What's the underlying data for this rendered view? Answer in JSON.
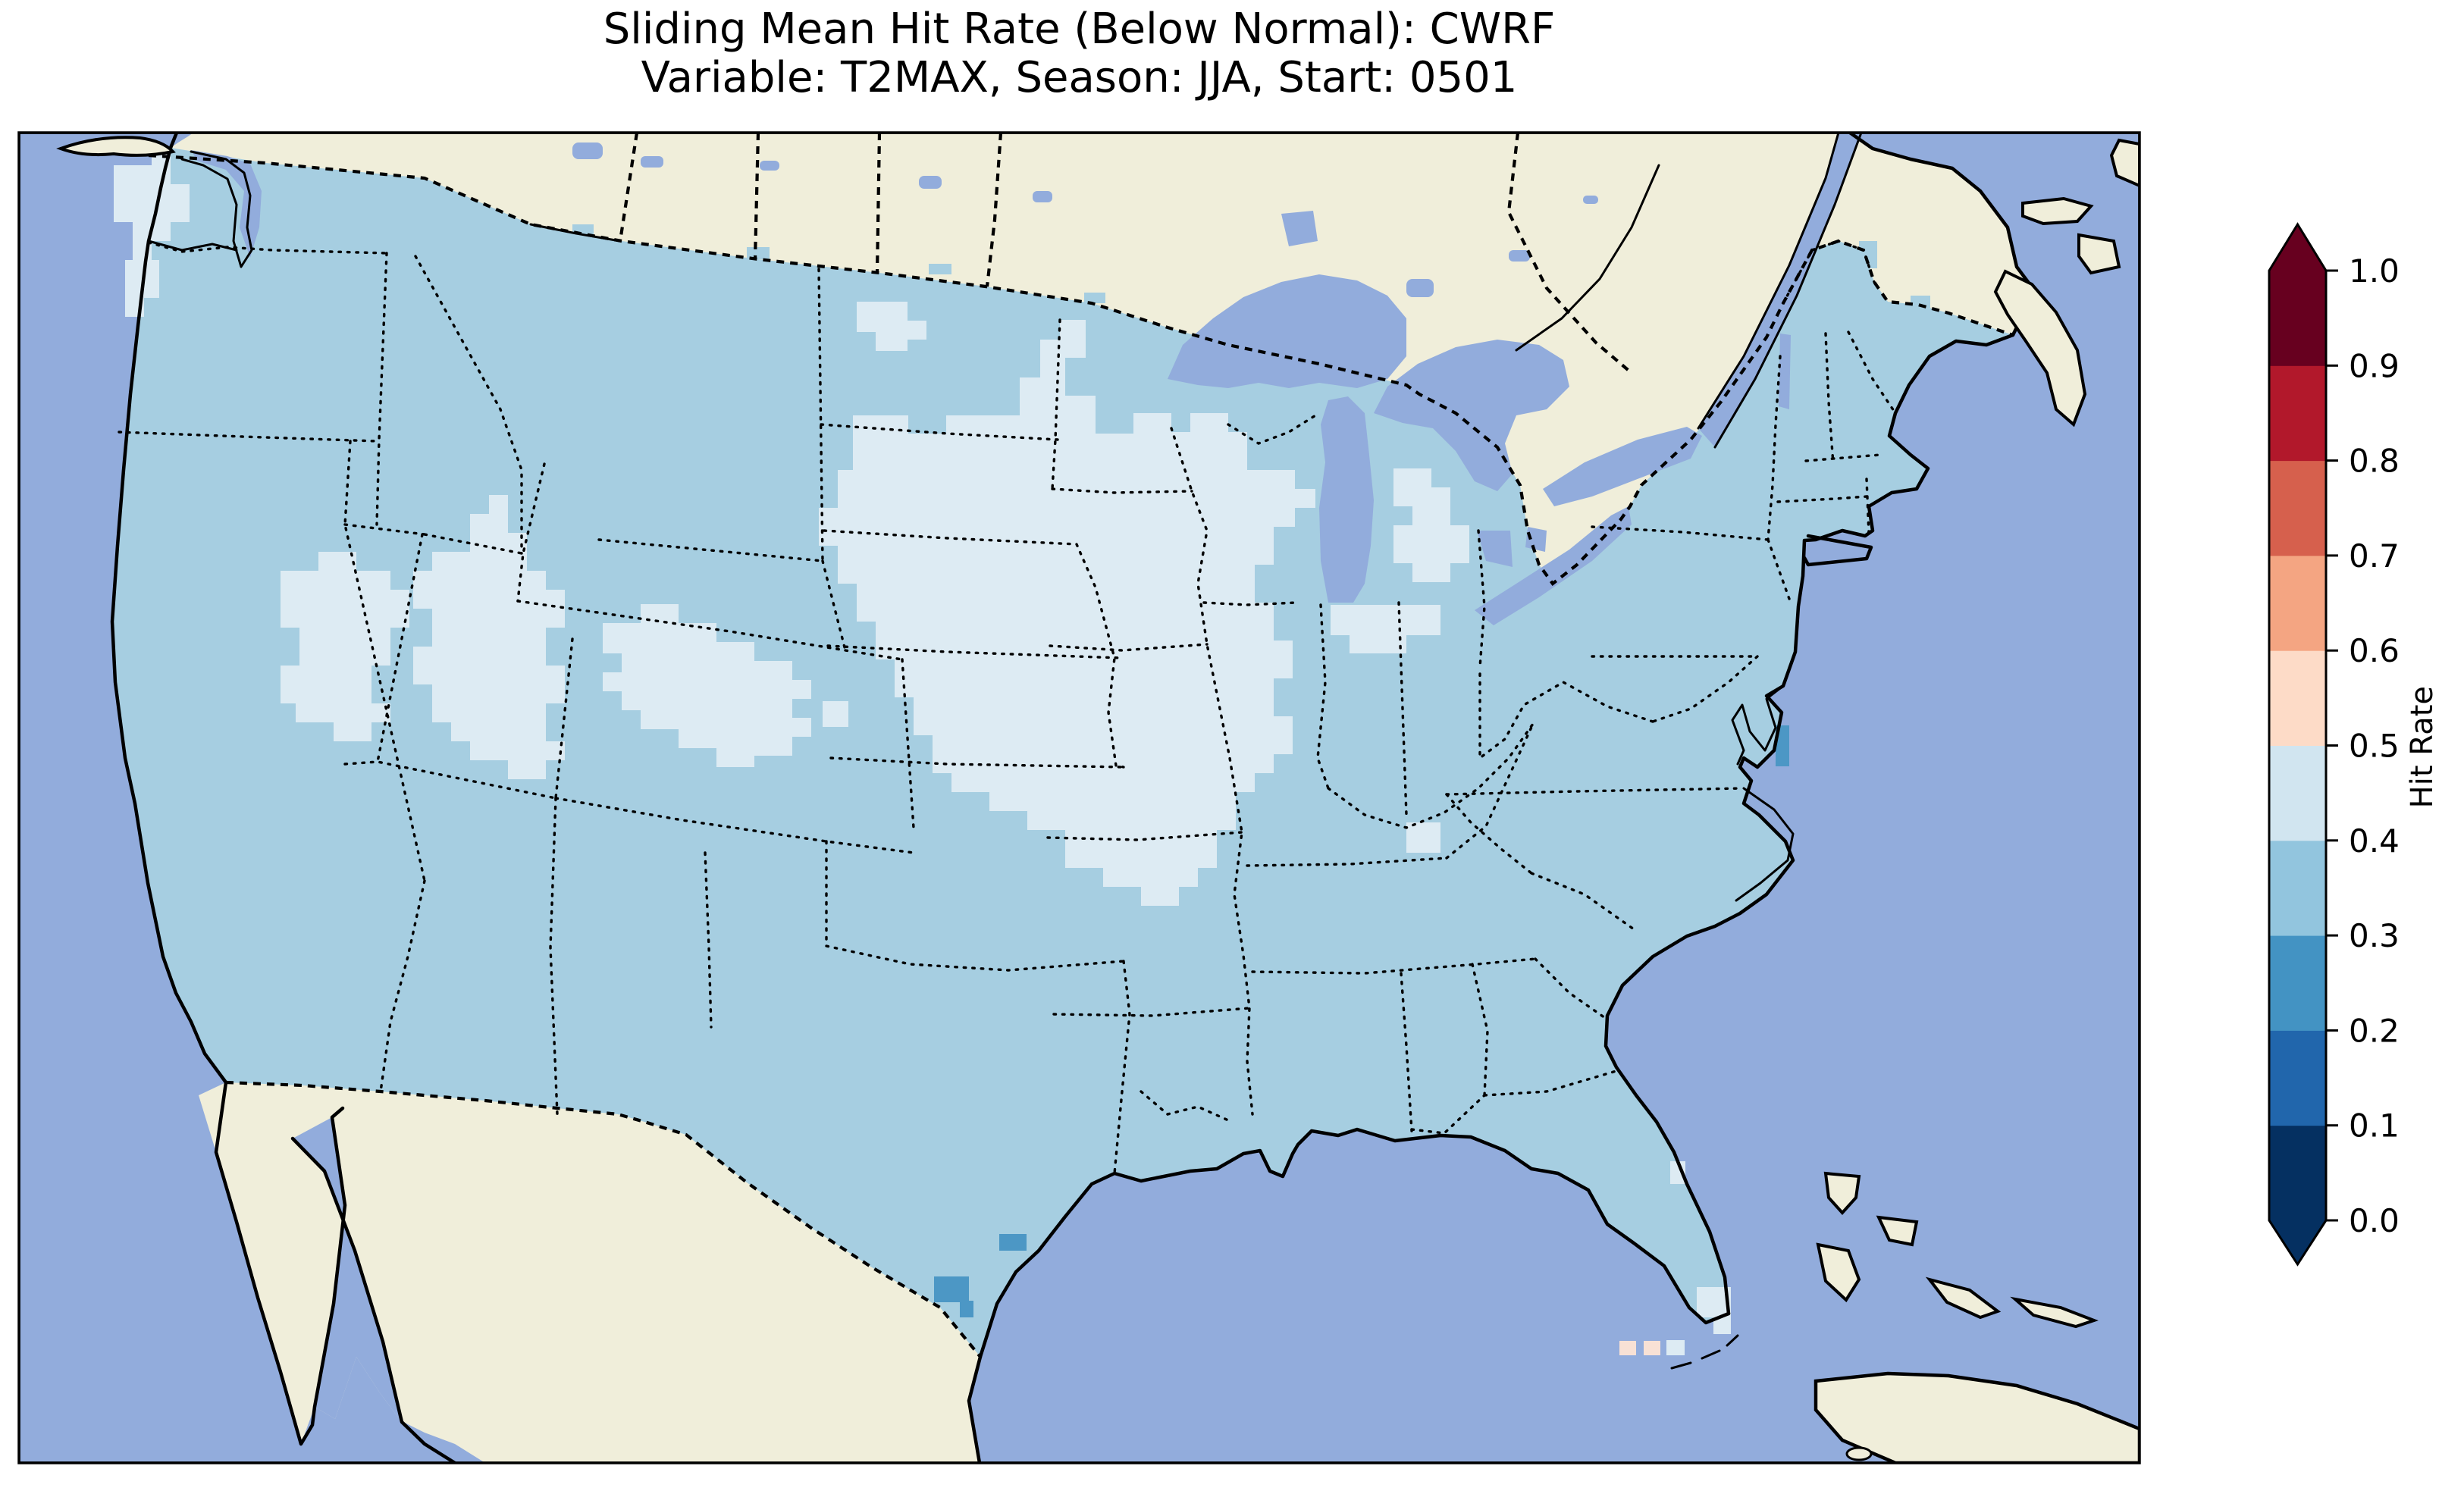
{
  "figure": {
    "title_line1": "Sliding Mean Hit Rate (Below Normal): CWRF",
    "title_line2": "Variable: T2MAX, Season: JJA, Start: 0501"
  },
  "colorbar": {
    "label": "Hit Rate",
    "tick_labels": [
      "0.0",
      "0.1",
      "0.2",
      "0.3",
      "0.4",
      "0.5",
      "0.6",
      "0.7",
      "0.8",
      "0.9",
      "1.0"
    ],
    "bin_colors_bottom_to_top": [
      "#053061",
      "#2166ac",
      "#4393c3",
      "#92c5de",
      "#d1e5f0",
      "#fddbc7",
      "#f4a582",
      "#d6604d",
      "#b2182b",
      "#67001f"
    ],
    "extend": "both"
  },
  "map": {
    "colors": {
      "ocean": "#92ACDC",
      "land": "#F0EEDA",
      "hit_0_3_to_0_4": "#A6CEE1",
      "hit_0_4_to_0_5": "#DDEBF3",
      "hit_0_2_to_0_3": "#4C97C5",
      "hit_0_5_to_0_6": "#F8E1D5",
      "coastline": "#000000"
    }
  },
  "chart_data": {
    "type": "heatmap",
    "title": "Sliding Mean Hit Rate (Below Normal): CWRF",
    "subtitle": "Variable: T2MAX, Season: JJA, Start: 0501",
    "metric": "Sliding Mean Hit Rate",
    "category": "Below Normal",
    "model": "CWRF",
    "variable": "T2MAX",
    "season": "JJA",
    "start": "0501",
    "colorbar_label": "Hit Rate",
    "colorbar_ticks": [
      0.0,
      0.1,
      0.2,
      0.3,
      0.4,
      0.5,
      0.6,
      0.7,
      0.8,
      0.9,
      1.0
    ],
    "colorbar_range": [
      0.0,
      1.0
    ],
    "colormap": {
      "name": "RdBu reversed, 10 discrete bins, extended arrows both ends",
      "bins": [
        {
          "range": [
            0.0,
            0.1
          ],
          "color": "#053061"
        },
        {
          "range": [
            0.1,
            0.2
          ],
          "color": "#2166ac"
        },
        {
          "range": [
            0.2,
            0.3
          ],
          "color": "#4393c3"
        },
        {
          "range": [
            0.3,
            0.4
          ],
          "color": "#92c5de"
        },
        {
          "range": [
            0.4,
            0.5
          ],
          "color": "#d1e5f0"
        },
        {
          "range": [
            0.5,
            0.6
          ],
          "color": "#fddbc7"
        },
        {
          "range": [
            0.6,
            0.7
          ],
          "color": "#f4a582"
        },
        {
          "range": [
            0.7,
            0.8
          ],
          "color": "#d6604d"
        },
        {
          "range": [
            0.8,
            0.9
          ],
          "color": "#b2182b"
        },
        {
          "range": [
            0.9,
            1.0
          ],
          "color": "#67001f"
        }
      ]
    },
    "map_extent": "Contiguous United States with surrounding southern Canada, northern Mexico, Gulf of Mexico and western Atlantic",
    "projection": "Lambert-conformal-style CONUS view, gridded ~25 px cells",
    "values_by_region": [
      {
        "region": "Most of CONUS (default)",
        "hit_rate_bin": "0.3-0.4"
      },
      {
        "region": "Upper Midwest: W/S Minnesota, Iowa, N Missouri, Illinois, S Wisconsin",
        "hit_rate_bin": "0.4-0.5"
      },
      {
        "region": "Great Basin / Rockies: NE Nevada, Utah, S Idaho, W Wyoming, W Colorado",
        "hit_rate_bin": "0.4-0.5"
      },
      {
        "region": "Western Washington (Puget Sound lowlands)",
        "hit_rate_bin": "0.4-0.5"
      },
      {
        "region": "NW North Dakota and N Minnesota patches",
        "hit_rate_bin": "0.4-0.5"
      },
      {
        "region": "Central Lower Michigan, N Indiana / NW Ohio patches",
        "hit_rate_bin": "0.4-0.5"
      },
      {
        "region": "Small Kentucky patch",
        "hit_rate_bin": "0.4-0.5"
      },
      {
        "region": "South Texas coast near Corpus Christi and Brownsville",
        "hit_rate_bin": "0.2-0.3"
      },
      {
        "region": "Chesapeake Bay mouth cell",
        "hit_rate_bin": "0.2-0.3"
      },
      {
        "region": "Cells just south of the Florida Keys",
        "hit_rate_bin": "0.5-0.6"
      },
      {
        "region": "South Florida tip and scattered coastal cells",
        "hit_rate_bin": "0.4-0.5"
      }
    ]
  }
}
